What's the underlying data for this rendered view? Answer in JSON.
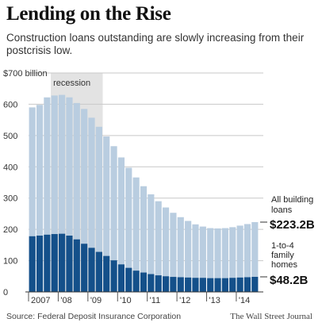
{
  "title": "Lending on the Rise",
  "subtitle": "Construction loans outstanding are slowly increasing from their postcrisis low.",
  "source": "Source: Federal Deposit Insurance Corporation",
  "credit": "The Wall Street Journal",
  "colors": {
    "total": "#b9cde0",
    "family": "#14508a",
    "recession": "#e3e3e3"
  },
  "chart_data": {
    "type": "bar",
    "title": "Lending on the Rise",
    "subtitle": "Construction loans outstanding are slowly increasing from their postcrisis low.",
    "ylim": [
      0,
      700
    ],
    "yticks": [
      0,
      100,
      200,
      300,
      400,
      500,
      600,
      700
    ],
    "ytick_labels": [
      "0",
      "100",
      "200",
      "300",
      "400",
      "500",
      "600",
      "$700 billion"
    ],
    "grid": true,
    "stacked_overlay": true,
    "x_tick_labels": [
      "2007",
      "'08",
      "'09",
      "'10",
      "'11",
      "'12",
      "'13",
      "'14"
    ],
    "x_tick_index": [
      0,
      4,
      8,
      12,
      16,
      20,
      24,
      28
    ],
    "shaded_region": {
      "label": "recession",
      "start_index": 3,
      "end_index": 9
    },
    "series": [
      {
        "name": "All building loans",
        "values": [
          590,
          598,
          622,
          628,
          630,
          622,
          604,
          585,
          557,
          528,
          497,
          466,
          430,
          397,
          366,
          338,
          312,
          290,
          270,
          253,
          239,
          227,
          216,
          209,
          204,
          203,
          204,
          207,
          212,
          217,
          223.2
        ],
        "end_label": "$223.2B"
      },
      {
        "name": "1-to-4 family homes",
        "values": [
          178,
          180,
          183,
          185,
          186,
          180,
          168,
          154,
          141,
          128,
          115,
          101,
          88,
          77,
          68,
          62,
          57,
          53,
          50,
          48,
          47,
          46,
          45,
          45,
          44,
          44,
          44,
          45,
          46,
          47,
          48.2
        ],
        "end_label": "$48.2B"
      }
    ]
  }
}
